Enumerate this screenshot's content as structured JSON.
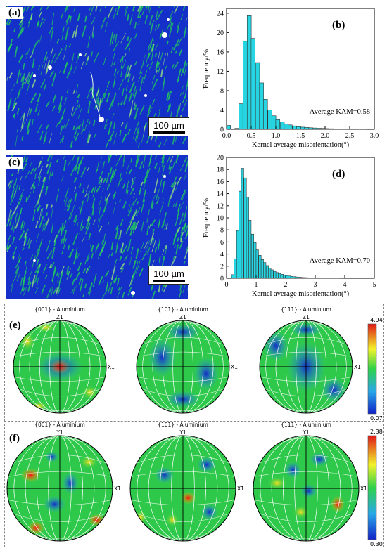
{
  "panels": {
    "a": {
      "label": "(a)",
      "scale_bar": "100 µm"
    },
    "b": {
      "label": "(b)"
    },
    "c": {
      "label": "(c)",
      "scale_bar": "100 µm"
    },
    "d": {
      "label": "(d)"
    },
    "e": {
      "label": "(e)",
      "titles": [
        "{001} - Aluminium",
        "{101} - Aluminium",
        "{111} - Aluminium"
      ],
      "axis_top": "Z1",
      "axis_right": "X1",
      "colorbar_max": "4.94",
      "colorbar_min": "0.07"
    },
    "f": {
      "label": "(f)",
      "titles": [
        "{001} - Aluminium",
        "{101} - Aluminium",
        "{111} - Aluminium"
      ],
      "axis_top": "Y1",
      "axis_right": "X1",
      "colorbar_max": "2.38",
      "colorbar_min": "0.30"
    }
  },
  "chart_data": [
    {
      "type": "bar",
      "panel": "b",
      "xlabel": "Kernel average misorientation(°)",
      "ylabel": "Frequency/%",
      "annotation": "Average KAM=0.58",
      "xlim": [
        0,
        3.0
      ],
      "ylim": [
        0,
        25
      ],
      "xticks": [
        "0.0",
        "0.5",
        "1.0",
        "1.5",
        "2.0",
        "2.5",
        "3.0"
      ],
      "yticks": [
        "0",
        "4",
        "8",
        "12",
        "16",
        "20",
        "24"
      ],
      "bin_width": 0.0833,
      "bin_centers": [
        0.04,
        0.21,
        0.29,
        0.38,
        0.46,
        0.54,
        0.63,
        0.71,
        0.79,
        0.88,
        0.96,
        1.04,
        1.13,
        1.21,
        1.29,
        1.38,
        1.46,
        1.54,
        1.63,
        1.71,
        1.79,
        1.88,
        1.96,
        2.04,
        2.13,
        2.21,
        2.29,
        2.38,
        2.46,
        2.54,
        2.63,
        2.71,
        2.79
      ],
      "values": [
        0.8,
        0.2,
        5.3,
        18.2,
        23.5,
        18.8,
        13.8,
        9.6,
        6.2,
        4.0,
        2.8,
        2.0,
        1.5,
        1.1,
        0.9,
        0.7,
        0.55,
        0.45,
        0.38,
        0.32,
        0.27,
        0.22,
        0.18,
        0.15,
        0.12,
        0.1,
        0.08,
        0.07,
        0.06,
        0.05,
        0.04,
        0.03,
        0.02
      ]
    },
    {
      "type": "bar",
      "panel": "d",
      "xlabel": "Kernel average misorientation(°)",
      "ylabel": "Frequency/%",
      "annotation": "Average KAM=0.70",
      "xlim": [
        0,
        5
      ],
      "ylim": [
        0,
        20
      ],
      "xticks": [
        "0",
        "1",
        "2",
        "3",
        "4",
        "5"
      ],
      "yticks": [
        "0",
        "2",
        "4",
        "6",
        "8",
        "10",
        "12",
        "14",
        "16",
        "18",
        "20"
      ],
      "bin_width": 0.0833,
      "bin_centers": [
        0.21,
        0.29,
        0.38,
        0.46,
        0.54,
        0.63,
        0.71,
        0.79,
        0.88,
        0.96,
        1.04,
        1.13,
        1.21,
        1.29,
        1.38,
        1.46,
        1.54,
        1.63,
        1.71,
        1.79,
        1.88,
        1.96,
        2.04,
        2.13,
        2.21,
        2.29,
        2.38,
        2.46,
        2.54,
        2.63,
        2.71,
        2.79,
        2.88,
        2.96,
        3.04,
        3.13,
        3.21,
        3.29,
        3.38,
        3.46,
        3.54,
        3.63,
        3.71,
        3.79
      ],
      "values": [
        0.6,
        3.2,
        7.9,
        14.4,
        18.2,
        16.6,
        13.4,
        9.6,
        7.3,
        5.9,
        4.7,
        3.8,
        3.1,
        2.6,
        2.1,
        1.7,
        1.4,
        1.15,
        0.95,
        0.8,
        0.65,
        0.55,
        0.45,
        0.38,
        0.32,
        0.26,
        0.22,
        0.18,
        0.15,
        0.12,
        0.1,
        0.08,
        0.07,
        0.06,
        0.05,
        0.04,
        0.035,
        0.03,
        0.025,
        0.02,
        0.018,
        0.015,
        0.012,
        0.01
      ]
    }
  ],
  "colors": {
    "map_bg": "#1530c8",
    "map_grain": "#22d455",
    "bar_fill": "#26d4e2",
    "bar_edge": "#333333"
  }
}
